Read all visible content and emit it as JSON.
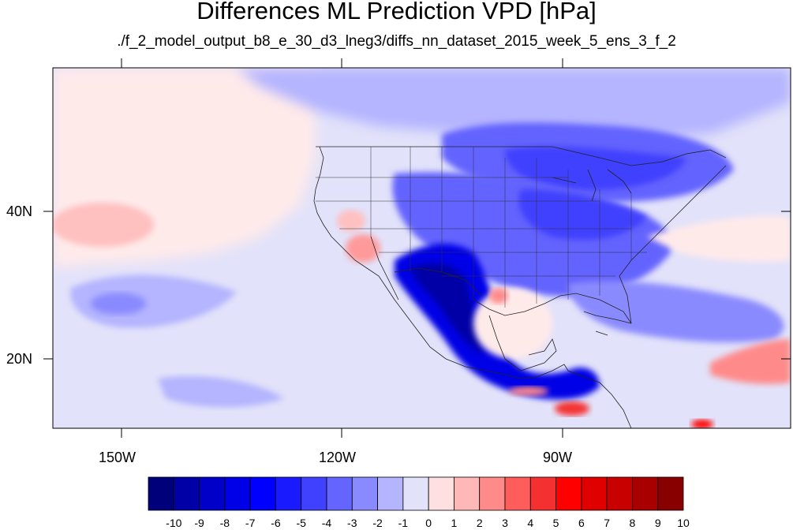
{
  "title": "Differences ML Prediction VPD [hPa]",
  "subtitle": "./f_2_model_output_b8_e_30_d3_lneg3/diffs_nn_dataset_2015_week_5_ens_3_f_2",
  "map": {
    "lon_labels": [
      "150W",
      "120W",
      "90W"
    ],
    "lat_labels": [
      "40N",
      "20N"
    ]
  },
  "colorbar": {
    "labels": [
      "-10",
      "-9",
      "-8",
      "-7",
      "-6",
      "-5",
      "-4",
      "-3",
      "-2",
      "-1",
      "0",
      "1",
      "2",
      "3",
      "4",
      "5",
      "6",
      "7",
      "8",
      "9",
      "10"
    ],
    "colors": [
      "#00007a",
      "#0000a6",
      "#0000c8",
      "#0000e6",
      "#0000ff",
      "#1a1aff",
      "#4040ff",
      "#6464ff",
      "#8a8aff",
      "#b4b4ff",
      "#e2e2fa",
      "#ffe0e0",
      "#ffb8b8",
      "#ff8a8a",
      "#ff5c5c",
      "#f53030",
      "#ff0000",
      "#e00000",
      "#c80000",
      "#a80000",
      "#880000"
    ]
  }
}
